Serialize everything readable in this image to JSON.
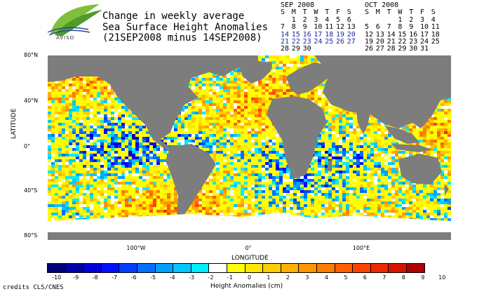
{
  "brand": {
    "name": "AVISO",
    "mark": "aviso-logo"
  },
  "title": {
    "line1": "Change in weekly average",
    "line2": "Sea Surface Height Anomalies",
    "line3": "(21SEP2008 minus 14SEP2008)"
  },
  "calendars": [
    {
      "month": "SEP 2008",
      "weekdays": [
        "S",
        "M",
        "T",
        "W",
        "T",
        "F",
        "S"
      ],
      "weeks": [
        [
          "",
          "1",
          "2",
          "3",
          "4",
          "5",
          "6"
        ],
        [
          "7",
          "8",
          "9",
          "10",
          "11",
          "12",
          "13"
        ],
        [
          "14",
          "15",
          "16",
          "17",
          "18",
          "19",
          "20"
        ],
        [
          "21",
          "22",
          "23",
          "24",
          "25",
          "26",
          "27"
        ],
        [
          "28",
          "29",
          "30",
          "",
          "",
          "",
          ""
        ]
      ],
      "highlighted": [
        "14",
        "15",
        "16",
        "17",
        "18",
        "19",
        "20",
        "21",
        "22",
        "23",
        "24",
        "25",
        "26",
        "27"
      ]
    },
    {
      "month": "OCT 2008",
      "weekdays": [
        "S",
        "M",
        "T",
        "W",
        "T",
        "F",
        "S"
      ],
      "weeks": [
        [
          "",
          "",
          "",
          "1",
          "2",
          "3",
          "4"
        ],
        [
          "5",
          "6",
          "7",
          "8",
          "9",
          "10",
          "11"
        ],
        [
          "12",
          "13",
          "14",
          "15",
          "16",
          "17",
          "18"
        ],
        [
          "19",
          "20",
          "21",
          "22",
          "23",
          "24",
          "25"
        ],
        [
          "26",
          "27",
          "28",
          "29",
          "30",
          "31",
          ""
        ]
      ],
      "highlighted": []
    }
  ],
  "map": {
    "y_axis_title": "LATITUDE",
    "x_axis_title": "LONGITUDE",
    "lat_ticks": [
      "80°N",
      "40°N",
      "0°",
      "40°S",
      "80°S"
    ],
    "lon_ticks": [
      "100°W",
      "0°",
      "100°E"
    ],
    "land_color": "#7d7d7d",
    "ice_color": "#ffffff"
  },
  "colorbar": {
    "title": "Height Anomalies (cm)",
    "labels": [
      "-10",
      "-9",
      "-8",
      "-7",
      "-6",
      "-5",
      "-4",
      "-3",
      "-2",
      "-1",
      "0",
      "1",
      "2",
      "3",
      "4",
      "5",
      "6",
      "7",
      "8",
      "9",
      "10"
    ],
    "colors": [
      "#00007a",
      "#0000a8",
      "#0000d8",
      "#0010ff",
      "#0040ff",
      "#0070ff",
      "#00a0ff",
      "#00c8ff",
      "#00ecff",
      "#ffffff",
      "#ffff00",
      "#ffe600",
      "#ffcc00",
      "#ffb000",
      "#ff9600",
      "#ff7c00",
      "#ff6000",
      "#ff4400",
      "#ee2a00",
      "#d51400",
      "#b00000"
    ]
  },
  "credits": "credits CLS/CNES"
}
